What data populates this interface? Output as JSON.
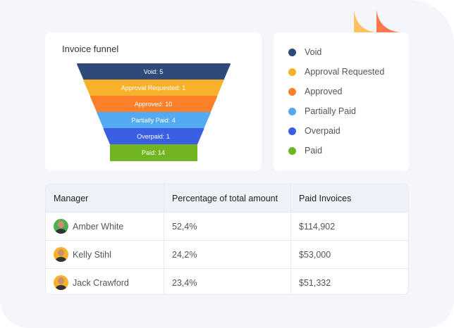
{
  "funnel": {
    "title": "Invoice funnel",
    "chart_data": {
      "type": "funnel",
      "categories": [
        "Void",
        "Approval Requested",
        "Approved",
        "Partially Paid",
        "Overpaid",
        "Paid"
      ],
      "values": [
        5,
        1,
        10,
        4,
        1,
        14
      ],
      "colors": [
        "#2f4a78",
        "#f7b12a",
        "#fc7f2a",
        "#53aaf2",
        "#3a5fe5",
        "#72b522"
      ]
    },
    "labels": [
      "Void:  5",
      "Approval Requested:  1",
      "Approved:  10",
      "Partially Paid:  4",
      "Overpaid:  1",
      "Paid:  14"
    ]
  },
  "legend": [
    "Void",
    "Approval Requested",
    "Approved",
    "Partially Paid",
    "Overpaid",
    "Paid"
  ],
  "table": {
    "headers": [
      "Manager",
      "Percentage of total amount",
      "Paid Invoices"
    ],
    "rows": [
      {
        "name": "Amber White",
        "pct": "52,4%",
        "paid": "$114,902",
        "avatar_color": "#4caf50"
      },
      {
        "name": "Kelly Stihl",
        "pct": "24,2%",
        "paid": "$53,000",
        "avatar_color": "#f7b12a"
      },
      {
        "name": "Jack Crawford",
        "pct": "23,4%",
        "paid": "$51,332",
        "avatar_color": "#f7b12a"
      }
    ]
  },
  "decor_colors": [
    "#ffc163",
    "#ff774a"
  ]
}
